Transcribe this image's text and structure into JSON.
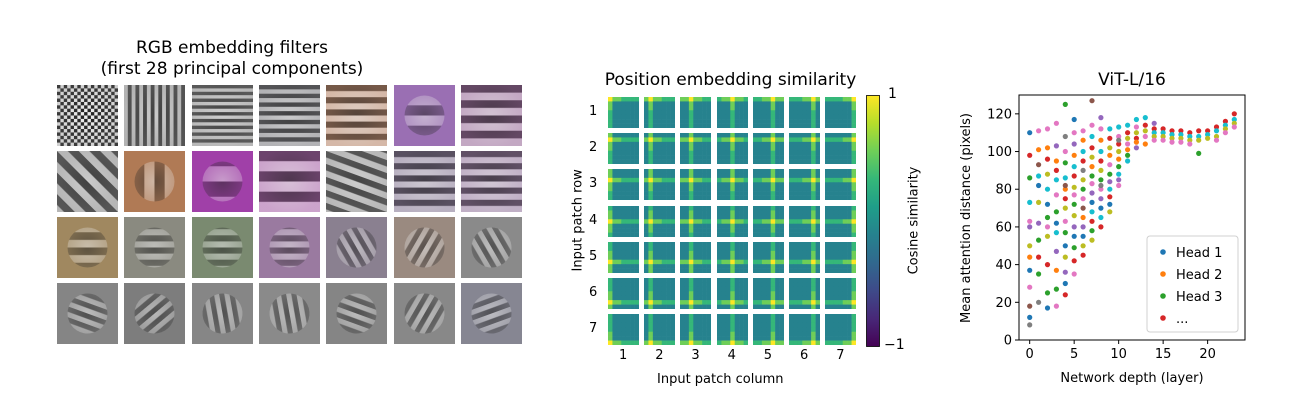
{
  "chart_data": [
    {
      "type": "image-grid",
      "title_line1": "RGB embedding filters",
      "title_line2": "(first 28 principal components)",
      "rows": 4,
      "cols": 7,
      "filters": [
        {
          "pattern": "checker",
          "freq": 9,
          "angle": 0,
          "tint": "#808080"
        },
        {
          "pattern": "stripes",
          "freq": 8,
          "angle": 90,
          "tint": "#808080"
        },
        {
          "pattern": "stripes",
          "freq": 9,
          "angle": 0,
          "tint": "#8a8a8a"
        },
        {
          "pattern": "stripes",
          "freq": 7,
          "angle": 0,
          "tint": "#7f7f85"
        },
        {
          "pattern": "stripes",
          "freq": 5,
          "angle": 0,
          "tint": "#c28a6a"
        },
        {
          "pattern": "blob",
          "freq": 3,
          "angle": 0,
          "tint": "#9a6fb3"
        },
        {
          "pattern": "stripes",
          "freq": 4,
          "angle": 0,
          "tint": "#a06aa0"
        },
        {
          "pattern": "diag",
          "freq": 4,
          "angle": 45,
          "tint": "#858585"
        },
        {
          "pattern": "blob",
          "freq": 3,
          "angle": 45,
          "tint": "#b07a55"
        },
        {
          "pattern": "blob",
          "freq": 2,
          "angle": 0,
          "tint": "#a040a8"
        },
        {
          "pattern": "stripes",
          "freq": 3,
          "angle": 0,
          "tint": "#b060b0"
        },
        {
          "pattern": "diag",
          "freq": 5,
          "angle": 20,
          "tint": "#8a8a8a"
        },
        {
          "pattern": "stripes",
          "freq": 5,
          "angle": 0,
          "tint": "#8a7a9a"
        },
        {
          "pattern": "stripes",
          "freq": 5,
          "angle": 0,
          "tint": "#9a7aa5"
        },
        {
          "pattern": "blob",
          "freq": 4,
          "angle": 0,
          "tint": "#a08860"
        },
        {
          "pattern": "blob",
          "freq": 5,
          "angle": 90,
          "tint": "#8a8a80"
        },
        {
          "pattern": "blob",
          "freq": 5,
          "angle": 90,
          "tint": "#7a8a70"
        },
        {
          "pattern": "blob",
          "freq": 5,
          "angle": 90,
          "tint": "#9a7aa0"
        },
        {
          "pattern": "blob",
          "freq": 6,
          "angle": 30,
          "tint": "#8a8090"
        },
        {
          "pattern": "blob",
          "freq": 6,
          "angle": 60,
          "tint": "#9a8a80"
        },
        {
          "pattern": "blob",
          "freq": 6,
          "angle": 120,
          "tint": "#8a8a8a"
        },
        {
          "pattern": "blob",
          "freq": 6,
          "angle": 10,
          "tint": "#858585"
        },
        {
          "pattern": "blob",
          "freq": 6,
          "angle": 70,
          "tint": "#7d7d7d"
        },
        {
          "pattern": "blob",
          "freq": 6,
          "angle": 130,
          "tint": "#868686"
        },
        {
          "pattern": "blob",
          "freq": 6,
          "angle": 40,
          "tint": "#8a8a8a"
        },
        {
          "pattern": "blob",
          "freq": 6,
          "angle": 100,
          "tint": "#858585"
        },
        {
          "pattern": "blob",
          "freq": 6,
          "angle": 150,
          "tint": "#888888"
        },
        {
          "pattern": "blob",
          "freq": 6,
          "angle": 80,
          "tint": "#868692"
        }
      ]
    },
    {
      "type": "heatmap",
      "title": "Position embedding similarity",
      "xlabel": "Input patch column",
      "ylabel": "Input patch row",
      "row_ticks": [
        "1",
        "2",
        "3",
        "4",
        "5",
        "6",
        "7"
      ],
      "col_ticks": [
        "1",
        "2",
        "3",
        "4",
        "5",
        "6",
        "7"
      ],
      "grid_size": 7,
      "colorbar_label": "Cosine similarity",
      "colorbar_ticks": [
        "1",
        "−1"
      ],
      "colorbar_range": [
        -1,
        1
      ],
      "colormap": [
        "#440154",
        "#482878",
        "#3e4a89",
        "#31688e",
        "#26828e",
        "#1f9e89",
        "#35b779",
        "#6ece58",
        "#b5de2b",
        "#fde725"
      ]
    },
    {
      "type": "scatter",
      "title": "ViT-L/16",
      "xlabel": "Network depth (layer)",
      "ylabel": "Mean attention distance (pixels)",
      "xlim": [
        -1.2,
        24.2
      ],
      "ylim": [
        0,
        130
      ],
      "xticks": [
        0,
        5,
        10,
        15,
        20
      ],
      "yticks": [
        0,
        20,
        40,
        60,
        80,
        100,
        120
      ],
      "legend": [
        "Head 1",
        "Head 2",
        "Head 3",
        "..."
      ],
      "legend_position": "lower-right",
      "colors": [
        "#1f77b4",
        "#ff7f0e",
        "#2ca02c",
        "#d62728",
        "#9467bd",
        "#8c564b",
        "#e377c2",
        "#7f7f7f",
        "#bcbd22",
        "#17becf"
      ],
      "points": [
        [
          0,
          110,
          0
        ],
        [
          0,
          37,
          0
        ],
        [
          0,
          12,
          0
        ],
        [
          0,
          86,
          2
        ],
        [
          0,
          63,
          6
        ],
        [
          0,
          28,
          6
        ],
        [
          0,
          18,
          5
        ],
        [
          0,
          8,
          7
        ],
        [
          0,
          50,
          8
        ],
        [
          0,
          73,
          9
        ],
        [
          0,
          98,
          3
        ],
        [
          0,
          44,
          1
        ],
        [
          0,
          60,
          4
        ],
        [
          1,
          111,
          6
        ],
        [
          1,
          101,
          1
        ],
        [
          1,
          87,
          9
        ],
        [
          1,
          73,
          8
        ],
        [
          1,
          53,
          2
        ],
        [
          1,
          35,
          2
        ],
        [
          1,
          20,
          7
        ],
        [
          1,
          62,
          4
        ],
        [
          1,
          44,
          3
        ],
        [
          1,
          82,
          0
        ],
        [
          1,
          93,
          5
        ],
        [
          2,
          112,
          6
        ],
        [
          2,
          102,
          1
        ],
        [
          2,
          96,
          3
        ],
        [
          2,
          88,
          8
        ],
        [
          2,
          80,
          9
        ],
        [
          2,
          65,
          2
        ],
        [
          2,
          55,
          8
        ],
        [
          2,
          40,
          3
        ],
        [
          2,
          25,
          2
        ],
        [
          2,
          17,
          0
        ],
        [
          2,
          72,
          0
        ],
        [
          2,
          60,
          6
        ],
        [
          3,
          115,
          6
        ],
        [
          3,
          103,
          4
        ],
        [
          3,
          95,
          1
        ],
        [
          3,
          85,
          9
        ],
        [
          3,
          77,
          6
        ],
        [
          3,
          68,
          2
        ],
        [
          3,
          57,
          9
        ],
        [
          3,
          47,
          4
        ],
        [
          3,
          37,
          1
        ],
        [
          3,
          27,
          2
        ],
        [
          3,
          18,
          6
        ],
        [
          3,
          90,
          3
        ],
        [
          3,
          62,
          0
        ],
        [
          4,
          125,
          2
        ],
        [
          4,
          108,
          7
        ],
        [
          4,
          100,
          6
        ],
        [
          4,
          94,
          2
        ],
        [
          4,
          86,
          9
        ],
        [
          4,
          80,
          1
        ],
        [
          4,
          75,
          3
        ],
        [
          4,
          70,
          8
        ],
        [
          4,
          63,
          6
        ],
        [
          4,
          57,
          2
        ],
        [
          4,
          50,
          0
        ],
        [
          4,
          44,
          8
        ],
        [
          4,
          36,
          4
        ],
        [
          4,
          30,
          0
        ],
        [
          4,
          24,
          3
        ],
        [
          4,
          82,
          5
        ],
        [
          5,
          117,
          0
        ],
        [
          5,
          110,
          6
        ],
        [
          5,
          104,
          4
        ],
        [
          5,
          98,
          1
        ],
        [
          5,
          92,
          9
        ],
        [
          5,
          87,
          3
        ],
        [
          5,
          81,
          8
        ],
        [
          5,
          77,
          6
        ],
        [
          5,
          72,
          2
        ],
        [
          5,
          66,
          8
        ],
        [
          5,
          60,
          4
        ],
        [
          5,
          55,
          0
        ],
        [
          5,
          49,
          2
        ],
        [
          5,
          42,
          3
        ],
        [
          5,
          35,
          6
        ],
        [
          6,
          111,
          6
        ],
        [
          6,
          106,
          1
        ],
        [
          6,
          100,
          9
        ],
        [
          6,
          95,
          3
        ],
        [
          6,
          90,
          7
        ],
        [
          6,
          85,
          8
        ],
        [
          6,
          80,
          2
        ],
        [
          6,
          75,
          6
        ],
        [
          6,
          70,
          5
        ],
        [
          6,
          65,
          1
        ],
        [
          6,
          60,
          4
        ],
        [
          6,
          55,
          0
        ],
        [
          6,
          50,
          8
        ],
        [
          6,
          45,
          3
        ],
        [
          7,
          127,
          5
        ],
        [
          7,
          114,
          6
        ],
        [
          7,
          108,
          9
        ],
        [
          7,
          102,
          3
        ],
        [
          7,
          97,
          8
        ],
        [
          7,
          92,
          1
        ],
        [
          7,
          87,
          2
        ],
        [
          7,
          83,
          6
        ],
        [
          7,
          78,
          4
        ],
        [
          7,
          73,
          0
        ],
        [
          7,
          68,
          9
        ],
        [
          7,
          63,
          3
        ],
        [
          7,
          58,
          2
        ],
        [
          7,
          53,
          8
        ],
        [
          8,
          118,
          4
        ],
        [
          8,
          112,
          6
        ],
        [
          8,
          106,
          1
        ],
        [
          8,
          100,
          9
        ],
        [
          8,
          95,
          3
        ],
        [
          8,
          90,
          8
        ],
        [
          8,
          85,
          2
        ],
        [
          8,
          80,
          6
        ],
        [
          8,
          75,
          4
        ],
        [
          8,
          70,
          0
        ],
        [
          8,
          65,
          9
        ],
        [
          8,
          60,
          3
        ],
        [
          8,
          82,
          7
        ],
        [
          9,
          112,
          9
        ],
        [
          9,
          107,
          3
        ],
        [
          9,
          102,
          8
        ],
        [
          9,
          98,
          1
        ],
        [
          9,
          93,
          6
        ],
        [
          9,
          88,
          2
        ],
        [
          9,
          84,
          4
        ],
        [
          9,
          80,
          9
        ],
        [
          9,
          76,
          3
        ],
        [
          9,
          72,
          0
        ],
        [
          9,
          68,
          8
        ],
        [
          10,
          113,
          9
        ],
        [
          10,
          108,
          6
        ],
        [
          10,
          104,
          3
        ],
        [
          10,
          100,
          8
        ],
        [
          10,
          96,
          1
        ],
        [
          10,
          92,
          2
        ],
        [
          10,
          88,
          9
        ],
        [
          10,
          85,
          4
        ],
        [
          10,
          82,
          6
        ],
        [
          10,
          106,
          7
        ],
        [
          11,
          114,
          9
        ],
        [
          11,
          110,
          3
        ],
        [
          11,
          107,
          8
        ],
        [
          11,
          104,
          6
        ],
        [
          11,
          101,
          1
        ],
        [
          11,
          98,
          2
        ],
        [
          11,
          95,
          9
        ],
        [
          12,
          117,
          9
        ],
        [
          12,
          113,
          6
        ],
        [
          12,
          110,
          8
        ],
        [
          12,
          107,
          3
        ],
        [
          12,
          105,
          1
        ],
        [
          12,
          102,
          4
        ],
        [
          13,
          118,
          9
        ],
        [
          13,
          114,
          3
        ],
        [
          13,
          111,
          8
        ],
        [
          13,
          108,
          6
        ],
        [
          13,
          104,
          1
        ],
        [
          14,
          112,
          3
        ],
        [
          14,
          110,
          9
        ],
        [
          14,
          108,
          8
        ],
        [
          14,
          106,
          6
        ],
        [
          14,
          115,
          4
        ],
        [
          15,
          112,
          3
        ],
        [
          15,
          110,
          9
        ],
        [
          15,
          108,
          8
        ],
        [
          15,
          106,
          6
        ],
        [
          16,
          111,
          3
        ],
        [
          16,
          109,
          9
        ],
        [
          16,
          107,
          8
        ],
        [
          16,
          105,
          6
        ],
        [
          17,
          111,
          3
        ],
        [
          17,
          109,
          9
        ],
        [
          17,
          107,
          8
        ],
        [
          17,
          105,
          6
        ],
        [
          18,
          110,
          3
        ],
        [
          18,
          108,
          9
        ],
        [
          18,
          106,
          8
        ],
        [
          18,
          104,
          6
        ],
        [
          19,
          111,
          3
        ],
        [
          19,
          108,
          9
        ],
        [
          19,
          106,
          8
        ],
        [
          19,
          99,
          2
        ],
        [
          20,
          111,
          3
        ],
        [
          20,
          109,
          9
        ],
        [
          20,
          107,
          8
        ],
        [
          21,
          113,
          3
        ],
        [
          21,
          111,
          9
        ],
        [
          21,
          108,
          8
        ],
        [
          21,
          106,
          6
        ],
        [
          22,
          116,
          3
        ],
        [
          22,
          114,
          9
        ],
        [
          22,
          112,
          8
        ],
        [
          22,
          110,
          6
        ],
        [
          23,
          120,
          3
        ],
        [
          23,
          117,
          9
        ],
        [
          23,
          115,
          8
        ],
        [
          23,
          113,
          6
        ]
      ]
    }
  ]
}
